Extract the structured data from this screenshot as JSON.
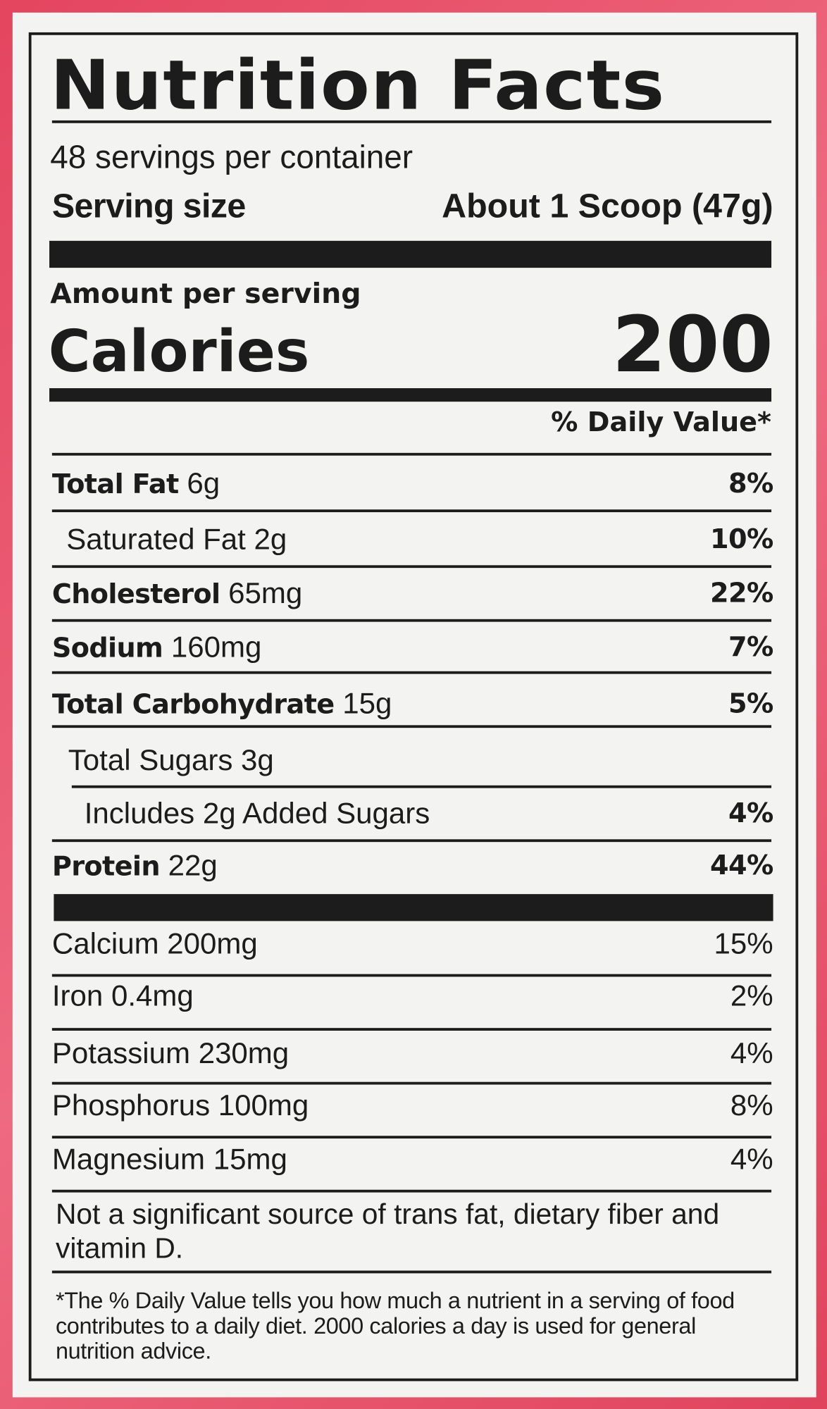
{
  "title": "Nutrition Facts",
  "servings_per_container": "48 servings per container",
  "serving_size": {
    "label": "Serving size",
    "value": "About 1 Scoop (47g)"
  },
  "amount_per_serving": "Amount per serving",
  "calories": {
    "label": "Calories",
    "value": "200"
  },
  "daily_value_header": "% Daily Value*",
  "nutrients": [
    {
      "name": "Total Fat",
      "amount": "6g",
      "daily_value": "8%"
    },
    {
      "name": "Saturated Fat",
      "amount": "2g",
      "daily_value": "10%"
    },
    {
      "name": "Cholesterol",
      "amount": "65mg",
      "daily_value": "22%"
    },
    {
      "name": "Sodium",
      "amount": "160mg",
      "daily_value": "7%"
    },
    {
      "name": "Total Carbohydrate",
      "amount": "15g",
      "daily_value": "5%"
    },
    {
      "name": "Total Sugars",
      "amount": "3g"
    },
    {
      "name": "Includes 2g Added Sugars",
      "daily_value": "4%"
    },
    {
      "name": "Protein",
      "amount": "22g",
      "daily_value": "44%"
    }
  ],
  "vitamins_minerals": [
    {
      "name": "Calcium",
      "amount": "200mg",
      "daily_value": "15%"
    },
    {
      "name": "Iron",
      "amount": "0.4mg",
      "daily_value": "2%"
    },
    {
      "name": "Potassium",
      "amount": "230mg",
      "daily_value": "4%"
    },
    {
      "name": "Phosphorus",
      "amount": "100mg",
      "daily_value": "8%"
    },
    {
      "name": "Magnesium",
      "amount": "15mg",
      "daily_value": "4%"
    }
  ],
  "note": "Not a significant source of trans fat, dietary fiber and vitamin D.",
  "footnote": "*The % Daily Value tells you how much a nutrient in a serving of food contributes to a daily diet. 2000 calories a day is used for general nutrition advice."
}
